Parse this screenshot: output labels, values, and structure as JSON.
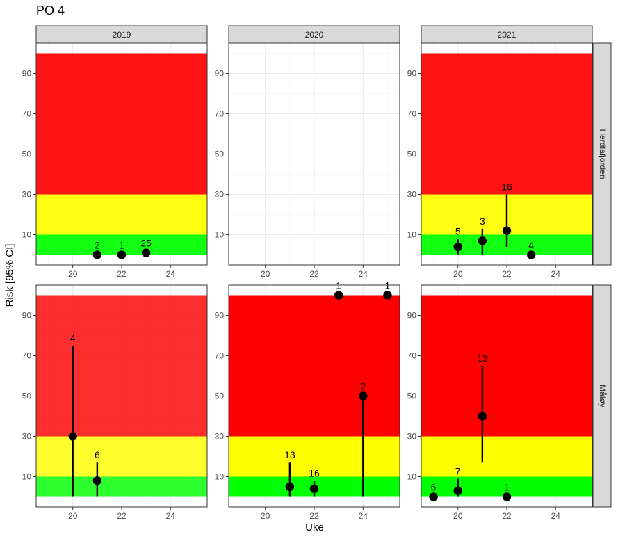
{
  "title": "PO 4",
  "chart_data": {
    "type": "scatter",
    "title": "PO 4",
    "xlabel": "Uke",
    "ylabel": "Risk [95% CI]",
    "xlim": [
      18.5,
      25.5
    ],
    "ylim": [
      -5,
      105
    ],
    "xticks": [
      20,
      22,
      24
    ],
    "yticks": [
      10,
      30,
      50,
      70,
      90
    ],
    "columns": [
      "2019",
      "2020",
      "2021"
    ],
    "rows": [
      "Herdlafjorden",
      "Måløy"
    ],
    "risk_bands": [
      {
        "name": "green",
        "from": 0,
        "to": 10,
        "color": "#00FF00"
      },
      {
        "name": "yellow",
        "from": 10,
        "to": 30,
        "color": "#FFFF00"
      },
      {
        "name": "red",
        "from": 30,
        "to": 100,
        "color": "#FF0000"
      }
    ],
    "panels": [
      {
        "column": "2019",
        "row": "Herdlafjorden",
        "bands": true,
        "band_alpha": 0.93,
        "points": [
          {
            "x": 21,
            "y": 0,
            "lo": 0,
            "hi": 0,
            "n": "2"
          },
          {
            "x": 22,
            "y": 0,
            "lo": 0,
            "hi": 0,
            "n": "1"
          },
          {
            "x": 23,
            "y": 1,
            "lo": 0,
            "hi": 2,
            "n": "25"
          }
        ]
      },
      {
        "column": "2020",
        "row": "Herdlafjorden",
        "bands": false,
        "band_alpha": 0,
        "points": []
      },
      {
        "column": "2021",
        "row": "Herdlafjorden",
        "bands": true,
        "band_alpha": 0.93,
        "points": [
          {
            "x": 20,
            "y": 4,
            "lo": 0,
            "hi": 8,
            "n": "5"
          },
          {
            "x": 21,
            "y": 7,
            "lo": 0,
            "hi": 13,
            "n": "3"
          },
          {
            "x": 22,
            "y": 12,
            "lo": 4,
            "hi": 30,
            "n": "16"
          },
          {
            "x": 23,
            "y": 0,
            "lo": 0,
            "hi": 0,
            "n": "4"
          }
        ]
      },
      {
        "column": "2019",
        "row": "Måløy",
        "bands": true,
        "band_alpha": 0.82,
        "points": [
          {
            "x": 20,
            "y": 30,
            "lo": 0,
            "hi": 75,
            "n": "4"
          },
          {
            "x": 21,
            "y": 8,
            "lo": 0,
            "hi": 17,
            "n": "6"
          }
        ]
      },
      {
        "column": "2020",
        "row": "Måløy",
        "bands": true,
        "band_alpha": 1,
        "points": [
          {
            "x": 21,
            "y": 5,
            "lo": 0,
            "hi": 17,
            "n": "13"
          },
          {
            "x": 22,
            "y": 4,
            "lo": 0,
            "hi": 8,
            "n": "16"
          },
          {
            "x": 23,
            "y": 100,
            "lo": 100,
            "hi": 100,
            "n": "1"
          },
          {
            "x": 24,
            "y": 50,
            "lo": 0,
            "hi": 50,
            "n": "2"
          },
          {
            "x": 25,
            "y": 100,
            "lo": 100,
            "hi": 100,
            "n": "1"
          }
        ]
      },
      {
        "column": "2021",
        "row": "Måløy",
        "bands": true,
        "band_alpha": 1,
        "points": [
          {
            "x": 19,
            "y": 0,
            "lo": 0,
            "hi": 0,
            "n": "6"
          },
          {
            "x": 20,
            "y": 3,
            "lo": 0,
            "hi": 9,
            "n": "7"
          },
          {
            "x": 21,
            "y": 40,
            "lo": 17,
            "hi": 65,
            "n": "13"
          },
          {
            "x": 22,
            "y": 0,
            "lo": 0,
            "hi": 0,
            "n": "1"
          }
        ]
      }
    ]
  }
}
